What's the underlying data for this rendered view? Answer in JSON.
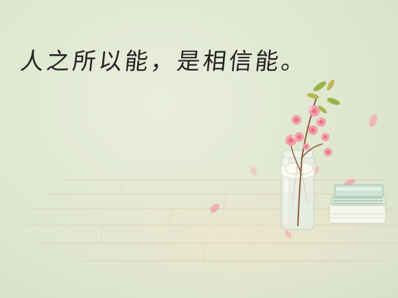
{
  "quote": {
    "text": "人之所以能，是相信能。"
  },
  "colors": {
    "background": "#e2e9d4",
    "text": "#222222",
    "petal": "#f2a9ae",
    "blossom": "#e9717f",
    "leaf": "#9bb04a",
    "wood": "#e9ddc6"
  }
}
